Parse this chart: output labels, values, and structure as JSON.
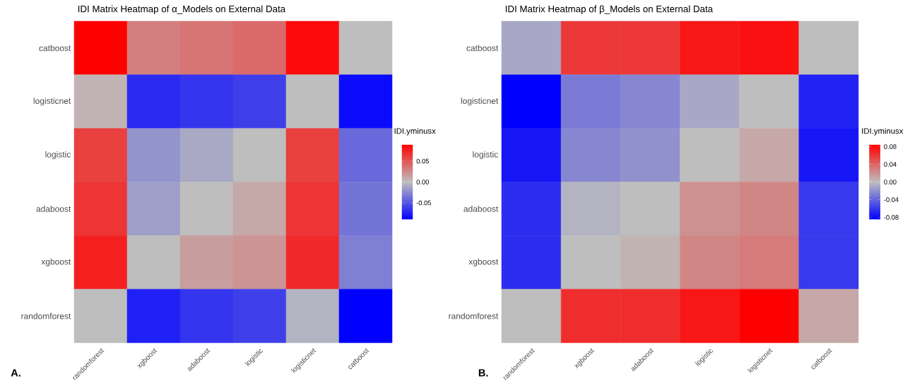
{
  "chart_data": [
    {
      "type": "heatmap",
      "title": "IDI Matrix Heatmap of α_Models on External Data",
      "clabel": "IDI.yminusx",
      "categories": [
        "randomforest",
        "xgboost",
        "adaboost",
        "logistic",
        "logisticnet",
        "catboost"
      ],
      "y_categories": [
        "catboost",
        "logisticnet",
        "logistic",
        "adaboost",
        "xgboost",
        "randomforest"
      ],
      "cells": [
        [
          0.09,
          0.03,
          0.035,
          0.04,
          0.085,
          0
        ],
        [
          0.005,
          -0.07,
          -0.065,
          -0.06,
          0,
          -0.085
        ],
        [
          0.06,
          -0.02,
          -0.01,
          0,
          0.06,
          -0.04
        ],
        [
          0.065,
          -0.015,
          0,
          0.01,
          0.065,
          -0.035
        ],
        [
          0.075,
          0,
          0.015,
          0.02,
          0.07,
          -0.03
        ],
        [
          0,
          -0.075,
          -0.065,
          -0.06,
          -0.005,
          -0.09
        ]
      ],
      "clim": [
        -0.09,
        0.09
      ],
      "cticks": [
        0.05,
        {
          "value": 0,
          "label": "0.00"
        },
        -0.05
      ],
      "annotations": [
        "A."
      ]
    },
    {
      "type": "heatmap",
      "title": "IDI Matrix Heatmap of β_Models on External Data",
      "clabel": "IDI.yminusx",
      "categories": [
        "randomforest",
        "xgboost",
        "adaboost",
        "logistic",
        "logisticnet",
        "catboost"
      ],
      "y_categories": [
        "catboost",
        "logisticnet",
        "logistic",
        "adaboost",
        "xgboost",
        "randomforest"
      ],
      "cells": [
        [
          -0.01,
          0.06,
          0.06,
          0.075,
          0.078,
          0
        ],
        [
          -0.085,
          -0.03,
          -0.025,
          -0.01,
          0,
          -0.07
        ],
        [
          -0.075,
          -0.025,
          -0.02,
          0,
          0.01,
          -0.075
        ],
        [
          -0.065,
          -0.005,
          0,
          0.02,
          0.025,
          -0.06
        ],
        [
          -0.065,
          0,
          0.005,
          0.025,
          0.03,
          -0.06
        ],
        [
          0,
          0.065,
          0.065,
          0.075,
          0.085,
          0.01
        ]
      ],
      "clim": [
        -0.085,
        0.085
      ],
      "cticks": [
        0.08,
        0.04,
        {
          "value": 0,
          "label": "0.00"
        },
        -0.04,
        -0.08
      ],
      "annotations": [
        "B."
      ]
    }
  ]
}
